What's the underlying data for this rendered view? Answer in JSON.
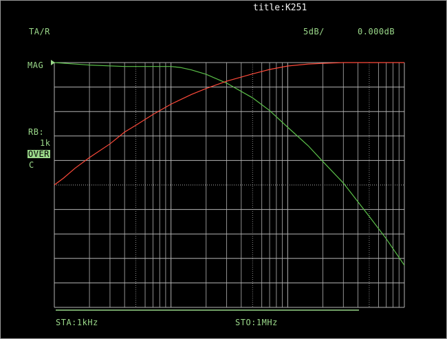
{
  "screen": {
    "title": "title:K251",
    "mode": "TA/R",
    "scale": "5dB/",
    "reference": "0.000dB",
    "trace_label": "MAG",
    "rb_label": "RB:",
    "rb_value": "1k",
    "over_badge": "OVER",
    "c_label": "C",
    "start_label": "STA:1kHz",
    "stop_label": "STO:1MHz"
  },
  "colors": {
    "grid": "#b4b4b4",
    "text": "#9bd98a",
    "trace_green": "#5cc24a",
    "trace_red": "#ff4a3a",
    "title": "#f2f2f2"
  },
  "chart_data": {
    "type": "line",
    "title": "title:K251",
    "x_scale": "log",
    "xlim": [
      1000,
      1000000
    ],
    "ylim": [
      -50,
      0
    ],
    "y_units": "dB",
    "y_per_div": 5,
    "reference_db": 0,
    "grid": true,
    "series": [
      {
        "color": "green",
        "x": [
          1000,
          2000,
          4000,
          7000,
          10000,
          12000,
          15000,
          20000,
          30000,
          50000,
          70000,
          100000,
          150000,
          200000,
          300000,
          500000,
          700000,
          1000000
        ],
        "y": [
          0.0,
          -0.5,
          -0.8,
          -0.8,
          -0.8,
          -1.0,
          -1.5,
          -2.4,
          -4.2,
          -7.2,
          -9.8,
          -13.2,
          -17.0,
          -20.2,
          -24.6,
          -31.4,
          -36.0,
          -41.4
        ]
      },
      {
        "color": "red",
        "x": [
          1000,
          1200,
          1500,
          2000,
          3000,
          4000,
          5000,
          7000,
          10000,
          15000,
          20000,
          30000,
          50000,
          70000,
          100000,
          150000,
          200000,
          300000,
          500000,
          1000000
        ],
        "y": [
          -25.0,
          -23.6,
          -21.6,
          -19.4,
          -16.6,
          -14.2,
          -12.8,
          -10.6,
          -8.5,
          -6.5,
          -5.3,
          -3.8,
          -2.3,
          -1.4,
          -0.7,
          -0.3,
          -0.15,
          0.0,
          0.0,
          0.0
        ]
      }
    ]
  }
}
